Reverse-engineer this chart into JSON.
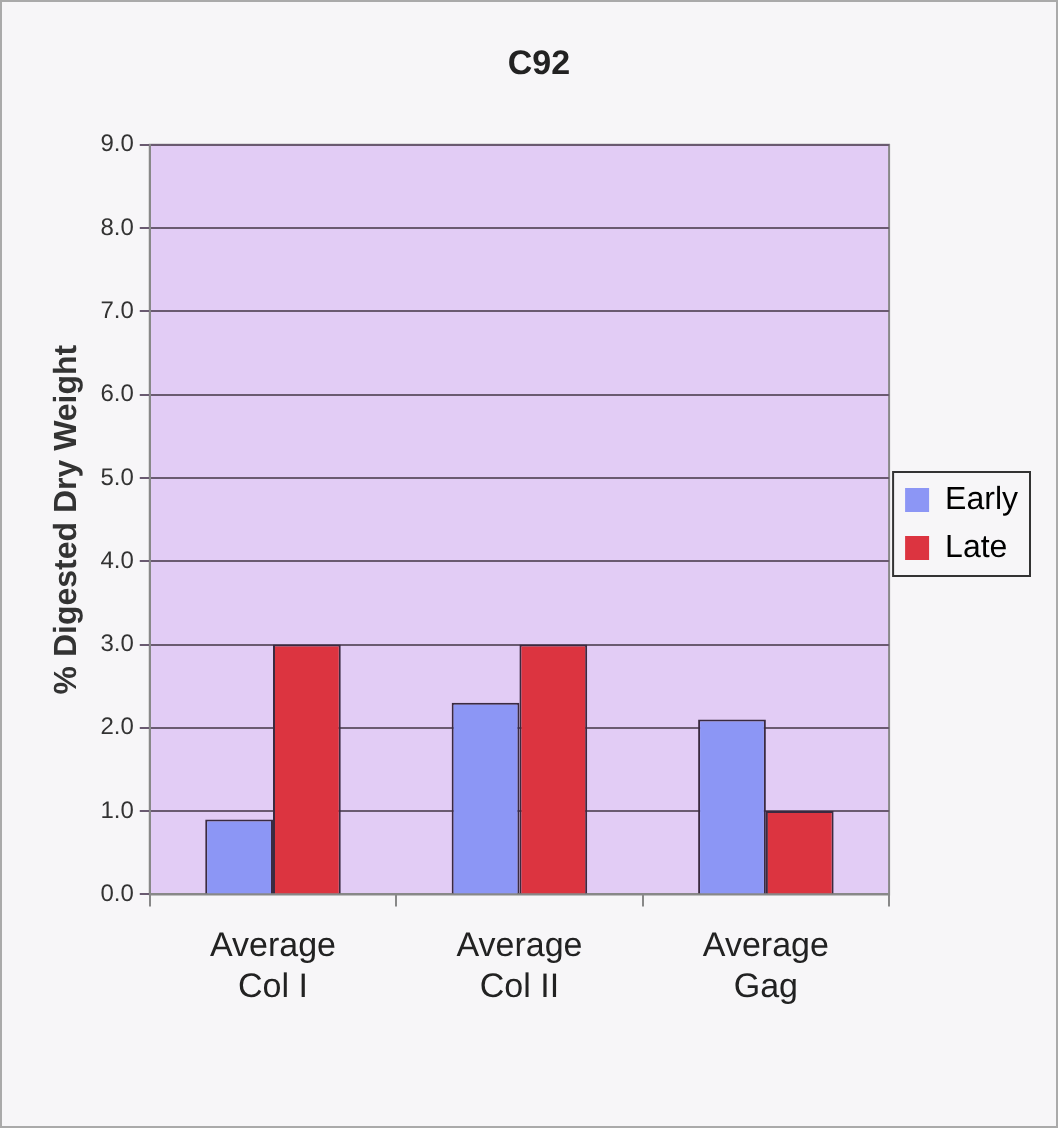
{
  "chart_data": {
    "type": "bar",
    "title": "C92",
    "ylabel": "% Digested Dry Weight",
    "categories": [
      "Average Col I",
      "Average Col II",
      "Average Gag"
    ],
    "series": [
      {
        "name": "Early",
        "color": "#8c96f5",
        "values": [
          0.9,
          2.3,
          2.1
        ]
      },
      {
        "name": "Late",
        "color": "#dc3440",
        "values": [
          3.0,
          3.0,
          1.0
        ]
      }
    ],
    "ylim": [
      0,
      9
    ],
    "yticks": [
      {
        "value": 0,
        "label": "0.0"
      },
      {
        "value": 1,
        "label": "1.0"
      },
      {
        "value": 2,
        "label": "2.0"
      },
      {
        "value": 3,
        "label": "3.0"
      },
      {
        "value": 4,
        "label": "4.0"
      },
      {
        "value": 5,
        "label": "5.0"
      },
      {
        "value": 6,
        "label": "6.0"
      },
      {
        "value": 7,
        "label": "7.0"
      },
      {
        "value": 8,
        "label": "8.0"
      },
      {
        "value": 9,
        "label": "9.0"
      }
    ],
    "grid": "y",
    "legend": "right"
  }
}
